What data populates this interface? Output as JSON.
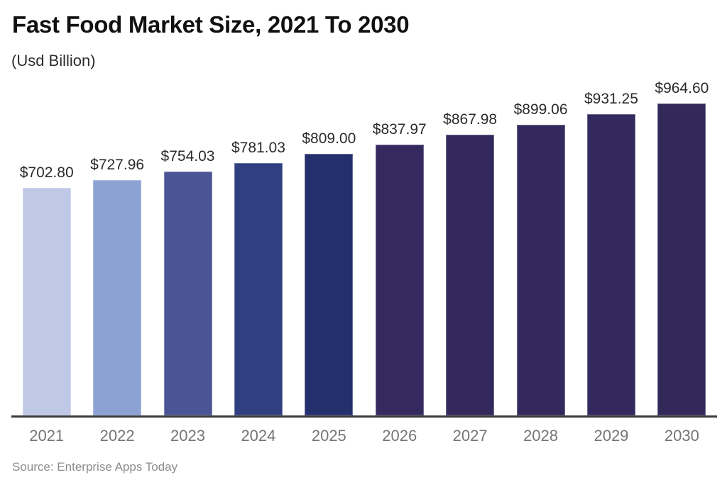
{
  "header": {
    "title": "Fast Food Market Size, 2021 To 2030",
    "subtitle": "(Usd Billion)"
  },
  "footer": {
    "source": "Source: Enterprise Apps Today"
  },
  "chart_data": {
    "type": "bar",
    "title": "Fast Food Market Size, 2021 To 2030",
    "subtitle": "(Usd Billion)",
    "xlabel": "",
    "ylabel": "Usd Billion",
    "categories": [
      "2021",
      "2022",
      "2023",
      "2024",
      "2025",
      "2026",
      "2027",
      "2028",
      "2029",
      "2030"
    ],
    "values": [
      702.8,
      727.96,
      754.03,
      781.03,
      809.0,
      837.97,
      867.98,
      899.06,
      931.25,
      964.6
    ],
    "value_labels": [
      "$702.80",
      "$727.96",
      "$754.03",
      "$781.03",
      "$809.00",
      "$837.97",
      "$867.98",
      "$899.06",
      "$931.25",
      "$964.60"
    ],
    "bar_colors": [
      "#c0c8e7",
      "#8ba2d3",
      "#4b5494",
      "#2f3f7f",
      "#242f6d",
      "#342a5f",
      "#33295c",
      "#33295c",
      "#33295e",
      "#32285a"
    ],
    "ylim": [
      0,
      964.6
    ],
    "bars_proportional_to_zero": true,
    "grid": false,
    "legend": false,
    "axis_line_color": "#3a3a3a",
    "value_label_color": "#2b2b2b",
    "tick_label_color": "#757575",
    "background_color": "#ffffff",
    "source": "Source: Enterprise Apps Today"
  }
}
